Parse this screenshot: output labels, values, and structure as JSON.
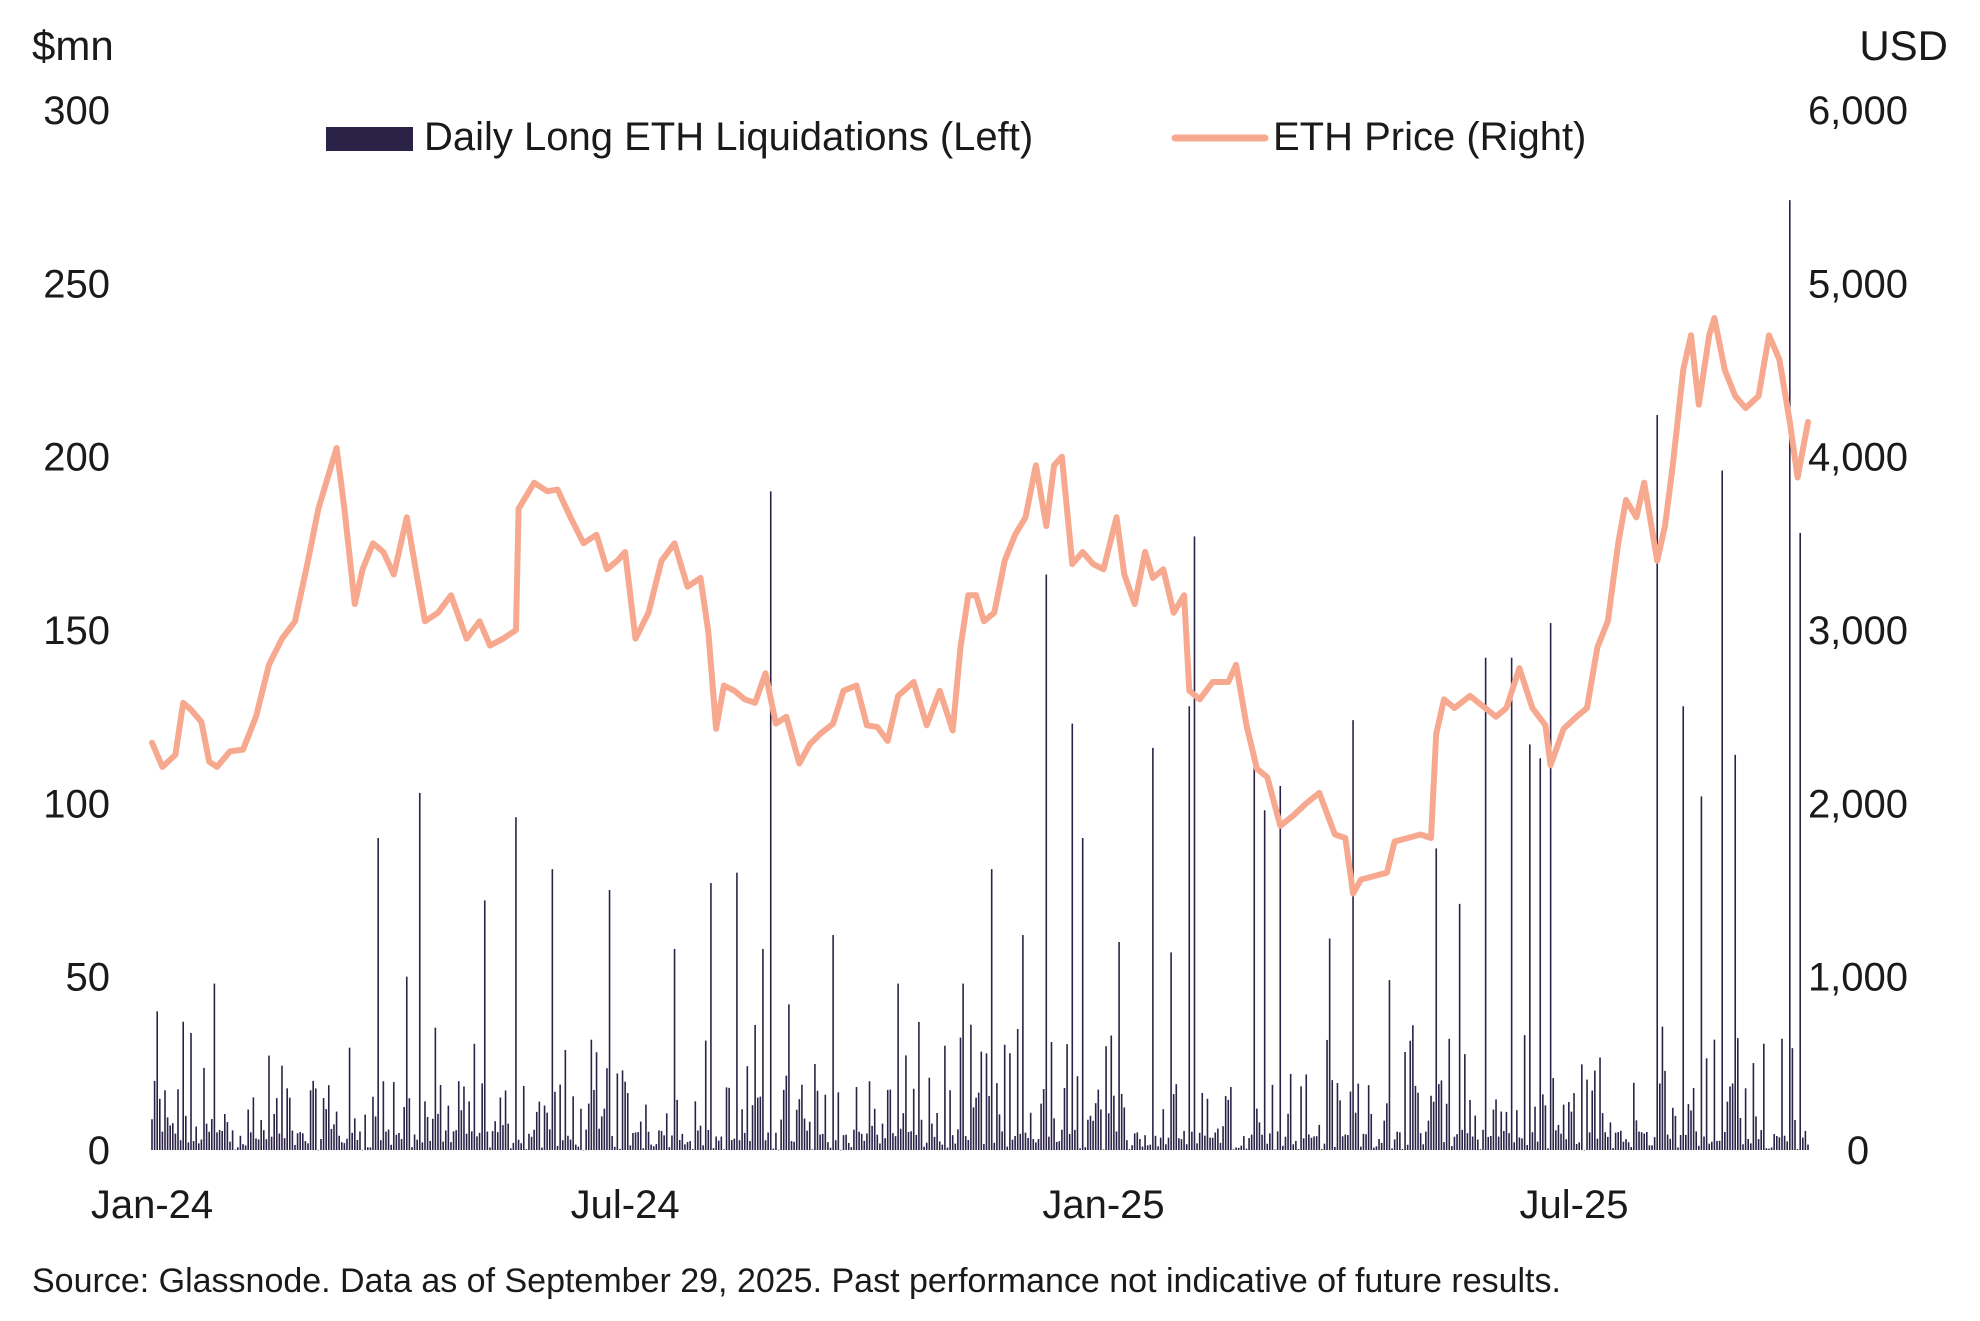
{
  "chart_data": {
    "type": "bar+line",
    "left_axis": {
      "unit_label": "$mn",
      "min": 0,
      "max": 300,
      "ticks": [
        "0",
        "50",
        "100",
        "150",
        "200",
        "250",
        "300"
      ],
      "tick_values": [
        0,
        50,
        100,
        150,
        200,
        250,
        300
      ]
    },
    "right_axis": {
      "unit_label": "USD",
      "min": 0,
      "max": 6000,
      "ticks": [
        "0",
        "1,000",
        "2,000",
        "3,000",
        "4,000",
        "5,000",
        "6,000"
      ],
      "tick_values": [
        0,
        1000,
        2000,
        3000,
        4000,
        5000,
        6000
      ]
    },
    "x_axis": {
      "ticks": [
        "Jan-24",
        "Jul-24",
        "Jan-25",
        "Jul-25"
      ],
      "tick_dates": [
        "2024-01-01",
        "2024-07-01",
        "2025-01-01",
        "2025-07-01"
      ],
      "range": [
        "2024-01-01",
        "2025-09-29"
      ]
    },
    "legend": [
      {
        "label": "Daily Long ETH Liquidations (Left)",
        "color": "#2b2347",
        "kind": "bar"
      },
      {
        "label": "ETH Price (Right)",
        "color": "#f7a98f",
        "kind": "line"
      }
    ],
    "series": [
      {
        "name": "ETH Price (Right)",
        "axis": "right",
        "color": "#f7a98f",
        "points": [
          [
            "2024-01-01",
            2350
          ],
          [
            "2024-01-05",
            2210
          ],
          [
            "2024-01-10",
            2280
          ],
          [
            "2024-01-13",
            2580
          ],
          [
            "2024-01-16",
            2540
          ],
          [
            "2024-01-20",
            2470
          ],
          [
            "2024-01-23",
            2240
          ],
          [
            "2024-01-26",
            2210
          ],
          [
            "2024-01-31",
            2300
          ],
          [
            "2024-02-05",
            2310
          ],
          [
            "2024-02-10",
            2500
          ],
          [
            "2024-02-15",
            2800
          ],
          [
            "2024-02-20",
            2950
          ],
          [
            "2024-02-25",
            3050
          ],
          [
            "2024-03-01",
            3400
          ],
          [
            "2024-03-05",
            3700
          ],
          [
            "2024-03-09",
            3900
          ],
          [
            "2024-03-12",
            4050
          ],
          [
            "2024-03-15",
            3700
          ],
          [
            "2024-03-19",
            3150
          ],
          [
            "2024-03-22",
            3350
          ],
          [
            "2024-03-26",
            3500
          ],
          [
            "2024-03-30",
            3450
          ],
          [
            "2024-04-03",
            3320
          ],
          [
            "2024-04-08",
            3650
          ],
          [
            "2024-04-12",
            3300
          ],
          [
            "2024-04-15",
            3050
          ],
          [
            "2024-04-20",
            3100
          ],
          [
            "2024-04-25",
            3200
          ],
          [
            "2024-05-01",
            2950
          ],
          [
            "2024-05-06",
            3050
          ],
          [
            "2024-05-10",
            2910
          ],
          [
            "2024-05-15",
            2950
          ],
          [
            "2024-05-20",
            3000
          ],
          [
            "2024-05-21",
            3700
          ],
          [
            "2024-05-27",
            3850
          ],
          [
            "2024-06-01",
            3800
          ],
          [
            "2024-06-05",
            3810
          ],
          [
            "2024-06-10",
            3650
          ],
          [
            "2024-06-15",
            3500
          ],
          [
            "2024-06-20",
            3550
          ],
          [
            "2024-06-24",
            3350
          ],
          [
            "2024-06-28",
            3400
          ],
          [
            "2024-07-01",
            3450
          ],
          [
            "2024-07-05",
            2950
          ],
          [
            "2024-07-10",
            3100
          ],
          [
            "2024-07-15",
            3400
          ],
          [
            "2024-07-20",
            3500
          ],
          [
            "2024-07-25",
            3250
          ],
          [
            "2024-07-30",
            3300
          ],
          [
            "2024-08-02",
            2990
          ],
          [
            "2024-08-05",
            2430
          ],
          [
            "2024-08-08",
            2680
          ],
          [
            "2024-08-12",
            2650
          ],
          [
            "2024-08-16",
            2600
          ],
          [
            "2024-08-20",
            2580
          ],
          [
            "2024-08-24",
            2750
          ],
          [
            "2024-08-28",
            2460
          ],
          [
            "2024-09-01",
            2500
          ],
          [
            "2024-09-06",
            2230
          ],
          [
            "2024-09-10",
            2340
          ],
          [
            "2024-09-14",
            2400
          ],
          [
            "2024-09-19",
            2460
          ],
          [
            "2024-09-23",
            2650
          ],
          [
            "2024-09-28",
            2680
          ],
          [
            "2024-10-02",
            2450
          ],
          [
            "2024-10-06",
            2440
          ],
          [
            "2024-10-10",
            2360
          ],
          [
            "2024-10-14",
            2620
          ],
          [
            "2024-10-20",
            2700
          ],
          [
            "2024-10-25",
            2450
          ],
          [
            "2024-10-30",
            2650
          ],
          [
            "2024-11-04",
            2420
          ],
          [
            "2024-11-07",
            2900
          ],
          [
            "2024-11-10",
            3200
          ],
          [
            "2024-11-13",
            3200
          ],
          [
            "2024-11-16",
            3050
          ],
          [
            "2024-11-20",
            3100
          ],
          [
            "2024-11-24",
            3400
          ],
          [
            "2024-11-28",
            3550
          ],
          [
            "2024-12-02",
            3650
          ],
          [
            "2024-12-06",
            3950
          ],
          [
            "2024-12-10",
            3600
          ],
          [
            "2024-12-13",
            3950
          ],
          [
            "2024-12-16",
            4000
          ],
          [
            "2024-12-20",
            3380
          ],
          [
            "2024-12-24",
            3450
          ],
          [
            "2024-12-28",
            3380
          ],
          [
            "2025-01-01",
            3350
          ],
          [
            "2025-01-06",
            3650
          ],
          [
            "2025-01-09",
            3320
          ],
          [
            "2025-01-13",
            3150
          ],
          [
            "2025-01-17",
            3450
          ],
          [
            "2025-01-20",
            3300
          ],
          [
            "2025-01-24",
            3350
          ],
          [
            "2025-01-28",
            3100
          ],
          [
            "2025-02-01",
            3200
          ],
          [
            "2025-02-03",
            2650
          ],
          [
            "2025-02-07",
            2600
          ],
          [
            "2025-02-12",
            2700
          ],
          [
            "2025-02-18",
            2700
          ],
          [
            "2025-02-21",
            2800
          ],
          [
            "2025-02-25",
            2450
          ],
          [
            "2025-03-01",
            2200
          ],
          [
            "2025-03-05",
            2150
          ],
          [
            "2025-03-10",
            1870
          ],
          [
            "2025-03-15",
            1930
          ],
          [
            "2025-03-20",
            2000
          ],
          [
            "2025-03-25",
            2060
          ],
          [
            "2025-03-31",
            1820
          ],
          [
            "2025-04-04",
            1800
          ],
          [
            "2025-04-07",
            1480
          ],
          [
            "2025-04-10",
            1560
          ],
          [
            "2025-04-15",
            1580
          ],
          [
            "2025-04-20",
            1600
          ],
          [
            "2025-04-23",
            1780
          ],
          [
            "2025-04-28",
            1800
          ],
          [
            "2025-05-03",
            1820
          ],
          [
            "2025-05-07",
            1800
          ],
          [
            "2025-05-09",
            2400
          ],
          [
            "2025-05-12",
            2600
          ],
          [
            "2025-05-16",
            2550
          ],
          [
            "2025-05-22",
            2620
          ],
          [
            "2025-05-27",
            2560
          ],
          [
            "2025-06-01",
            2500
          ],
          [
            "2025-06-05",
            2550
          ],
          [
            "2025-06-10",
            2780
          ],
          [
            "2025-06-15",
            2550
          ],
          [
            "2025-06-20",
            2450
          ],
          [
            "2025-06-22",
            2220
          ],
          [
            "2025-06-27",
            2430
          ],
          [
            "2025-07-02",
            2500
          ],
          [
            "2025-07-06",
            2550
          ],
          [
            "2025-07-10",
            2900
          ],
          [
            "2025-07-14",
            3050
          ],
          [
            "2025-07-18",
            3500
          ],
          [
            "2025-07-21",
            3750
          ],
          [
            "2025-07-25",
            3650
          ],
          [
            "2025-07-28",
            3850
          ],
          [
            "2025-08-02",
            3400
          ],
          [
            "2025-08-05",
            3600
          ],
          [
            "2025-08-08",
            3950
          ],
          [
            "2025-08-12",
            4500
          ],
          [
            "2025-08-15",
            4700
          ],
          [
            "2025-08-18",
            4300
          ],
          [
            "2025-08-22",
            4700
          ],
          [
            "2025-08-24",
            4800
          ],
          [
            "2025-08-28",
            4500
          ],
          [
            "2025-09-01",
            4350
          ],
          [
            "2025-09-05",
            4280
          ],
          [
            "2025-09-10",
            4350
          ],
          [
            "2025-09-14",
            4700
          ],
          [
            "2025-09-18",
            4560
          ],
          [
            "2025-09-22",
            4200
          ],
          [
            "2025-09-25",
            3880
          ],
          [
            "2025-09-29",
            4200
          ]
        ]
      },
      {
        "name": "Daily Long ETH Liquidations (Left)",
        "axis": "left",
        "color": "#2b2347",
        "spikes": [
          [
            "2024-01-03",
            40
          ],
          [
            "2024-01-13",
            37
          ],
          [
            "2024-01-25",
            48
          ],
          [
            "2024-03-28",
            90
          ],
          [
            "2024-04-08",
            50
          ],
          [
            "2024-04-13",
            103
          ],
          [
            "2024-05-08",
            72
          ],
          [
            "2024-05-20",
            96
          ],
          [
            "2024-06-03",
            81
          ],
          [
            "2024-06-25",
            75
          ],
          [
            "2024-07-20",
            58
          ],
          [
            "2024-08-03",
            77
          ],
          [
            "2024-08-13",
            80
          ],
          [
            "2024-08-23",
            58
          ],
          [
            "2024-08-26",
            190
          ],
          [
            "2024-09-02",
            42
          ],
          [
            "2024-09-19",
            62
          ],
          [
            "2024-10-14",
            48
          ],
          [
            "2024-11-08",
            48
          ],
          [
            "2024-11-19",
            81
          ],
          [
            "2024-12-01",
            62
          ],
          [
            "2024-12-10",
            166
          ],
          [
            "2024-12-20",
            123
          ],
          [
            "2024-12-24",
            90
          ],
          [
            "2025-01-07",
            60
          ],
          [
            "2025-01-20",
            116
          ],
          [
            "2025-01-27",
            57
          ],
          [
            "2025-02-03",
            128
          ],
          [
            "2025-02-05",
            177
          ],
          [
            "2025-02-28",
            112
          ],
          [
            "2025-03-04",
            98
          ],
          [
            "2025-03-10",
            105
          ],
          [
            "2025-03-29",
            61
          ],
          [
            "2025-04-07",
            124
          ],
          [
            "2025-04-21",
            49
          ],
          [
            "2025-05-09",
            87
          ],
          [
            "2025-05-18",
            71
          ],
          [
            "2025-05-28",
            142
          ],
          [
            "2025-06-07",
            142
          ],
          [
            "2025-06-14",
            117
          ],
          [
            "2025-06-18",
            113
          ],
          [
            "2025-06-22",
            152
          ],
          [
            "2025-08-02",
            212
          ],
          [
            "2025-08-12",
            128
          ],
          [
            "2025-08-19",
            102
          ],
          [
            "2025-08-27",
            196
          ],
          [
            "2025-09-01",
            114
          ],
          [
            "2025-09-22",
            274
          ],
          [
            "2025-09-26",
            178
          ]
        ]
      }
    ],
    "source_note": "Source: Glassnode. Data as of September 29, 2025. Past performance not indicative of future results."
  }
}
